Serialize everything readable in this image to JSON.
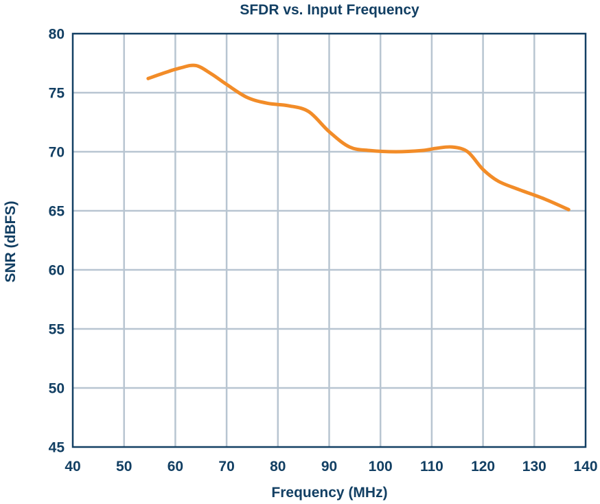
{
  "chart_data": {
    "type": "line",
    "title": "SFDR vs. Input Frequency",
    "xlabel": "Frequency (MHz)",
    "ylabel": "SNR (dBFS)",
    "xlim": [
      40,
      140
    ],
    "ylim": [
      45,
      80
    ],
    "xticks": [
      40,
      50,
      60,
      70,
      80,
      90,
      100,
      110,
      120,
      130,
      140
    ],
    "yticks": [
      45,
      50,
      55,
      60,
      65,
      70,
      75,
      80
    ],
    "xtick_labels": [
      "40",
      "50",
      "60",
      "70",
      "80",
      "90",
      "100",
      "110",
      "120",
      "130",
      "140"
    ],
    "ytick_labels": [
      "45",
      "50",
      "55",
      "60",
      "65",
      "70",
      "75",
      "80"
    ],
    "grid": true,
    "series": [
      {
        "name": "SNR",
        "x": [
          54.7,
          58,
          61,
          64,
          67,
          70,
          74,
          78,
          82,
          86,
          90,
          94,
          98,
          103,
          108,
          111,
          114,
          117,
          120,
          123,
          127,
          132,
          136.7
        ],
        "values": [
          76.2,
          76.7,
          77.1,
          77.3,
          76.6,
          75.7,
          74.6,
          74.1,
          73.9,
          73.4,
          71.7,
          70.4,
          70.1,
          70.0,
          70.1,
          70.3,
          70.4,
          70.0,
          68.5,
          67.5,
          66.8,
          66.0,
          65.1
        ]
      }
    ],
    "colors": {
      "line": "#F28C28",
      "text": "#123F63",
      "grid": "#B8C5D1",
      "frame": "#123F63"
    }
  }
}
